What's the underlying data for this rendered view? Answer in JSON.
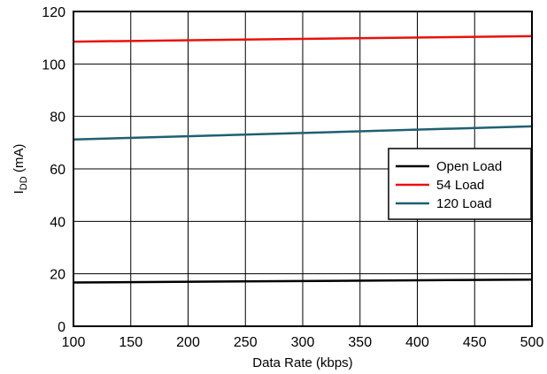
{
  "chart_data": {
    "type": "line",
    "xlabel": "Data Rate (kbps)",
    "ylabel_main": "I",
    "ylabel_sub": "DD",
    "ylabel_unit": " (mA)",
    "xlim": [
      100,
      500
    ],
    "ylim": [
      0,
      120
    ],
    "xticks": [
      100,
      150,
      200,
      250,
      300,
      350,
      400,
      450,
      500
    ],
    "yticks": [
      0,
      20,
      40,
      60,
      80,
      100,
      120
    ],
    "grid": true,
    "legend_position": "right-middle",
    "series": [
      {
        "name": "Open Load",
        "color": "#000000",
        "x": [
          100,
          500
        ],
        "y": [
          16.7,
          17.8
        ]
      },
      {
        "name": "54 Load",
        "color": "#e8120c",
        "x": [
          100,
          500
        ],
        "y": [
          108.5,
          110.6
        ]
      },
      {
        "name": "120 Load",
        "color": "#1f5f73",
        "x": [
          100,
          500
        ],
        "y": [
          71.2,
          76.2
        ]
      }
    ]
  }
}
